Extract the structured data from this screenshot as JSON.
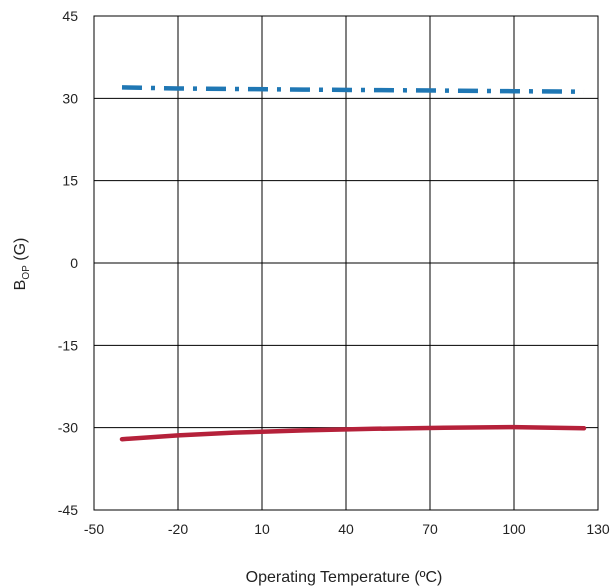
{
  "chart_data": {
    "type": "line",
    "title": "",
    "xlabel": "Operating Temperature (ºC)",
    "ylabel_main": "B",
    "ylabel_sub": "OP",
    "ylabel_rest": " (G)",
    "xlim": [
      -50,
      130
    ],
    "ylim": [
      -45,
      45
    ],
    "x_ticks": [
      -50,
      -20,
      10,
      40,
      70,
      100,
      130
    ],
    "y_ticks": [
      45,
      30,
      15,
      0,
      -15,
      -30,
      -45
    ],
    "grid": true,
    "legend": "none",
    "series": [
      {
        "color": "#1f77b4",
        "style": "dash-dot",
        "x": [
          -40,
          -20,
          0,
          25,
          50,
          75,
          100,
          125
        ],
        "y": [
          32.0,
          31.8,
          31.7,
          31.6,
          31.5,
          31.4,
          31.3,
          31.2
        ]
      },
      {
        "color": "#b5213a",
        "style": "solid",
        "x": [
          -40,
          -20,
          0,
          25,
          50,
          75,
          100,
          125
        ],
        "y": [
          -32.1,
          -31.4,
          -30.9,
          -30.5,
          -30.2,
          -30.0,
          -29.9,
          -30.1
        ]
      }
    ]
  }
}
